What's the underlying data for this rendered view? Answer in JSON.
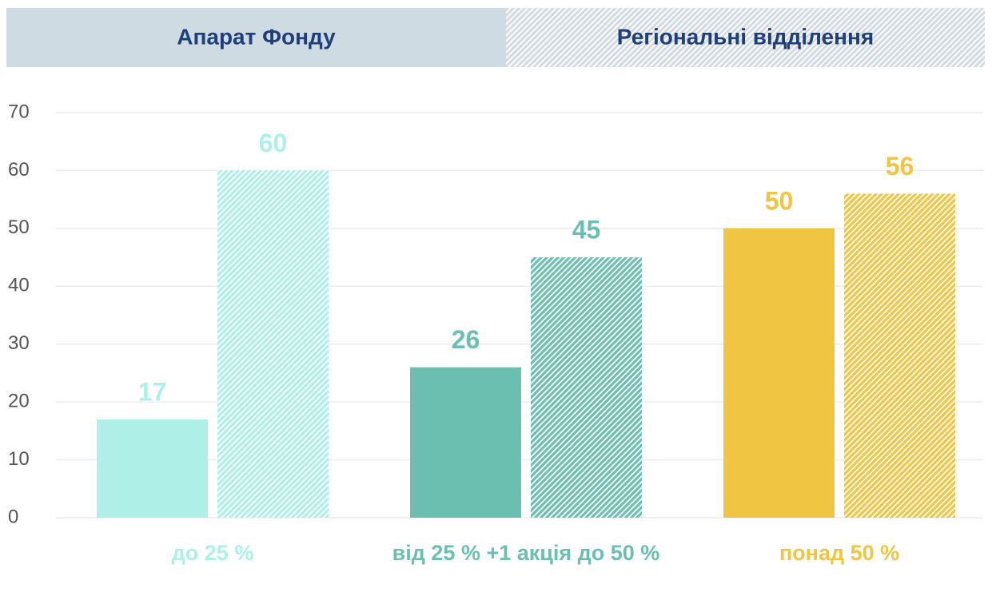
{
  "chart_data": {
    "type": "bar",
    "categories": [
      "до 25 %",
      "від 25 % +1 акція до 50 %",
      "понад 50 %"
    ],
    "category_colors": [
      "#aef0e8",
      "#6bbfb0",
      "#f0c542"
    ],
    "series": [
      {
        "name": "Апарат Фонду",
        "color": "#cfdbe3",
        "fill": "solid",
        "values": [
          17,
          26,
          50
        ]
      },
      {
        "name": "Регіональні відділення",
        "color": "#d4dce1",
        "fill": "hatched",
        "values": [
          60,
          45,
          56
        ]
      }
    ],
    "ylim": [
      0,
      70
    ],
    "yticks": [
      0,
      10,
      20,
      30,
      40,
      50,
      60,
      70
    ],
    "grid": true
  }
}
